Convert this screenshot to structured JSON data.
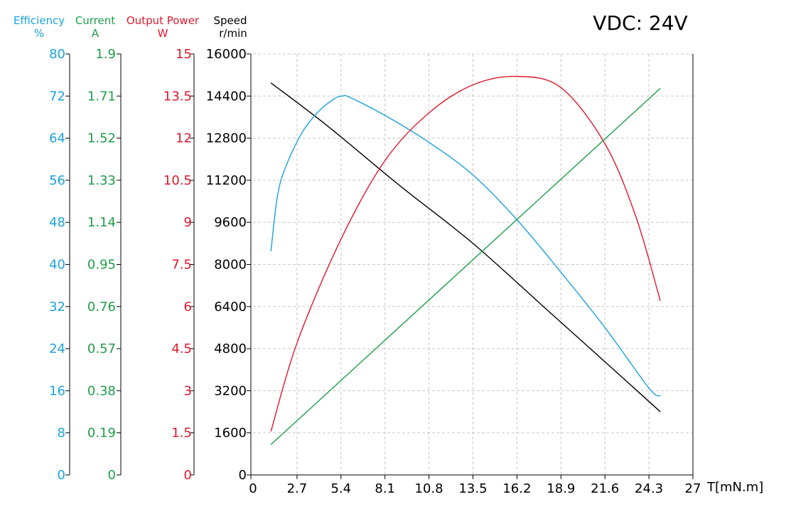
{
  "chart_data": {
    "type": "line",
    "title": "VDC: 24V",
    "xlabel": "T[mN.m]",
    "xlim": [
      0,
      27
    ],
    "x_ticks": [
      "0",
      "2.7",
      "5.4",
      "8.1",
      "10.8",
      "13.5",
      "16.2",
      "18.9",
      "21.6",
      "24.3",
      "27"
    ],
    "grid": true,
    "axes": [
      {
        "key": "efficiency",
        "title": "Efficiency",
        "unit": "%",
        "color": "#1aa3dd",
        "ylim": [
          0,
          80
        ],
        "ticks": [
          "0",
          "8",
          "16",
          "24",
          "32",
          "40",
          "48",
          "56",
          "64",
          "72",
          "80"
        ]
      },
      {
        "key": "current",
        "title": "Current",
        "unit": "A",
        "color": "#1f9e4a",
        "ylim": [
          0,
          1.9
        ],
        "ticks": [
          "0",
          "0.19",
          "0.38",
          "0.57",
          "0.76",
          "0.95",
          "1.14",
          "1.33",
          "1.52",
          "1.71",
          "1.9"
        ]
      },
      {
        "key": "power",
        "title": "Output Power",
        "unit": "W",
        "color": "#e0192b",
        "ylim": [
          0,
          15
        ],
        "ticks": [
          "0",
          "1.5",
          "3",
          "4.5",
          "6",
          "7.5",
          "9",
          "10.5",
          "12",
          "13.5",
          "15"
        ]
      },
      {
        "key": "speed",
        "title": "Speed",
        "unit": "r/min",
        "color": "#000000",
        "ylim": [
          0,
          16000
        ],
        "ticks": [
          "0",
          "1600",
          "3200",
          "4800",
          "6400",
          "8000",
          "9600",
          "11200",
          "12800",
          "14400",
          "16000"
        ]
      }
    ],
    "series": [
      {
        "name": "Speed",
        "axis": "speed",
        "color": "#000000",
        "x": [
          1.1,
          4.5,
          9.0,
          13.5,
          18.0,
          21.6,
          25.0
        ],
        "y": [
          14900,
          13300,
          11000,
          8800,
          6300,
          4300,
          2400
        ]
      },
      {
        "name": "Efficiency",
        "axis": "efficiency",
        "color": "#1aa3dd",
        "x": [
          1.1,
          1.5,
          2.0,
          3.0,
          4.0,
          5.0,
          5.5,
          5.9,
          8.0,
          10.8,
          13.5,
          16.2,
          18.9,
          21.6,
          24.3,
          25.0
        ],
        "y": [
          42.5,
          53,
          58.5,
          65,
          69,
          71.5,
          72,
          71.8,
          68.5,
          63.2,
          57,
          48.5,
          38.5,
          28,
          16.5,
          15
        ]
      },
      {
        "name": "Output Power",
        "axis": "power",
        "color": "#e0192b",
        "x": [
          1.1,
          2.7,
          5.4,
          8.1,
          10.8,
          13.5,
          16.2,
          18.9,
          21.6,
          23.5,
          25.0
        ],
        "y": [
          1.55,
          4.7,
          8.4,
          11.2,
          12.9,
          13.9,
          14.2,
          13.8,
          11.8,
          9.2,
          6.2
        ]
      },
      {
        "name": "Current",
        "axis": "current",
        "color": "#1f9e4a",
        "x": [
          1.1,
          25.0
        ],
        "y": [
          0.137,
          1.745
        ]
      }
    ]
  }
}
